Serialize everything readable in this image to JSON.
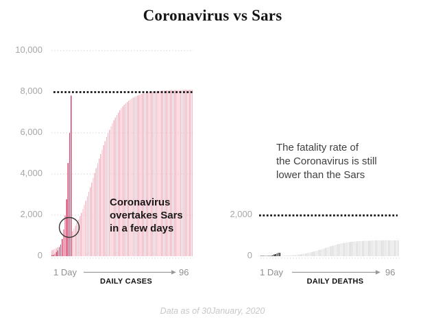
{
  "title": "Coronavirus vs Sars",
  "footer": "Data as of 30January, 2020",
  "colors": {
    "coronavirus_cases": "#d4456e",
    "sars_cases": "#f3b7c5",
    "sars_deaths": "#dcdcdc",
    "coronavirus_deaths": "#1a1a1a",
    "reference_line": "#161616",
    "grid_line": "#cfcfcf",
    "axis_text": "#a6a6a6"
  },
  "left_chart": {
    "y_ticks": [
      "10,000",
      "8,000",
      "6,000",
      "4,000",
      "2,000",
      "0"
    ],
    "x_start_label": "1 Day",
    "x_end_label": "96",
    "axis_label": "DAILY CASES",
    "annotation": "Coronavirus\novertakes Sars\nin a few days"
  },
  "right_chart": {
    "y_ticks": [
      "2,000",
      "0"
    ],
    "x_start_label": "1 Day",
    "x_end_label": "96",
    "axis_label": "DAILY DEATHS",
    "note": "The fatality rate of\nthe Coronavirus is still\nlower than the Sars"
  },
  "chart_data": [
    {
      "type": "bar",
      "title": "DAILY CASES",
      "x_label_start": "1 Day",
      "x_label_end": "96",
      "x_range": [
        1,
        96
      ],
      "ylim": [
        0,
        10000
      ],
      "y_ticks": [
        0,
        2000,
        4000,
        6000,
        8000,
        10000
      ],
      "reference_line": {
        "value": 8000,
        "style": "bold-dotted-black"
      },
      "grid": "dotted-light",
      "annotations": [
        {
          "type": "text",
          "text": "Coronavirus overtakes Sars in a few days"
        },
        {
          "type": "circle",
          "day": 13,
          "value": 1400,
          "meaning": "point where coronavirus overtakes sars"
        }
      ],
      "series": [
        {
          "name": "Sars cumulative cases",
          "color": "#f3b7c5",
          "start_day": 1,
          "values": [
            279,
            311,
            347,
            388,
            433,
            482,
            537,
            598,
            664,
            738,
            819,
            908,
            1005,
            1110,
            1225,
            1350,
            1484,
            1629,
            1783,
            1948,
            2123,
            2308,
            2503,
            2705,
            2917,
            3135,
            3358,
            3587,
            3817,
            4050,
            4282,
            4514,
            4742,
            4966,
            5183,
            5394,
            5597,
            5792,
            5977,
            6152,
            6317,
            6472,
            6616,
            6750,
            6875,
            6990,
            7095,
            7192,
            7281,
            7361,
            7435,
            7502,
            7563,
            7618,
            7668,
            7712,
            7753,
            7789,
            7822,
            7851,
            7877,
            7901,
            7922,
            7941,
            7958,
            7973,
            7987,
            7999,
            8010,
            8020,
            8029,
            8036,
            8043,
            8049,
            8054,
            8060,
            8064,
            8068,
            8071,
            8074,
            8077,
            8080,
            8082,
            8084,
            8085,
            8087,
            8088,
            8090,
            8091,
            8092,
            8093,
            8094,
            8094,
            8095,
            8095,
            8096
          ]
        },
        {
          "name": "Coronavirus cumulative cases",
          "color": "#d4456e",
          "start_day": 1,
          "values": [
            45,
            62,
            121,
            198,
            291,
            440,
            574,
            835,
            1297,
            1985,
            2761,
            4537,
            5997,
            7818
          ]
        }
      ]
    },
    {
      "type": "bar",
      "title": "DAILY DEATHS",
      "x_label_start": "1 Day",
      "x_label_end": "96",
      "x_range": [
        1,
        96
      ],
      "ylim": [
        0,
        2000
      ],
      "y_ticks": [
        0,
        2000
      ],
      "reference_line": {
        "value": 2000,
        "style": "bold-dotted-black"
      },
      "grid": "none",
      "series": [
        {
          "name": "Sars cumulative deaths",
          "color": "#dcdcdc",
          "start_day": 1,
          "values": [
            4,
            5,
            5,
            6,
            7,
            7,
            8,
            9,
            10,
            11,
            13,
            14,
            16,
            18,
            20,
            23,
            26,
            29,
            33,
            37,
            42,
            47,
            52,
            58,
            64,
            72,
            80,
            89,
            99,
            110,
            122,
            135,
            149,
            164,
            179,
            196,
            214,
            233,
            253,
            274,
            296,
            318,
            341,
            364,
            387,
            410,
            433,
            456,
            478,
            500,
            521,
            541,
            560,
            578,
            595,
            611,
            626,
            640,
            653,
            664,
            675,
            684,
            693,
            702,
            710,
            716,
            722,
            727,
            732,
            737,
            741,
            744,
            747,
            750,
            753,
            756,
            758,
            760,
            762,
            763,
            765,
            766,
            767,
            768,
            768,
            769,
            770,
            770,
            771,
            771,
            772,
            772,
            772,
            772,
            772,
            772
          ]
        },
        {
          "name": "Coronavirus cumulative deaths",
          "color": "#1a1a1a",
          "start_day": 1,
          "values": [
            1,
            2,
            3,
            6,
            9,
            17,
            25,
            41,
            56,
            80,
            106,
            132,
            162,
            170
          ]
        }
      ]
    }
  ]
}
